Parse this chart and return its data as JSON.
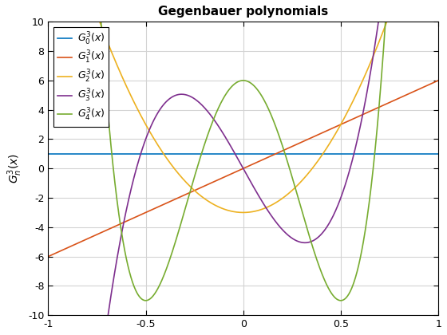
{
  "title": "Gegenbauer polynomials",
  "ylabel": "$G_n^{3}(x)$",
  "xlim": [
    -1,
    1
  ],
  "ylim": [
    -10,
    10
  ],
  "alpha_param": 3,
  "n_values": [
    0,
    1,
    2,
    3,
    4
  ],
  "colors": [
    "#0072BD",
    "#D95319",
    "#EDB120",
    "#7E2F8E",
    "#77AC30"
  ],
  "legend_labels": [
    "$G_0^3(x)$",
    "$G_1^3(x)$",
    "$G_2^3(x)$",
    "$G_3^3(x)$",
    "$G_4^3(x)$"
  ],
  "grid": true,
  "linewidth": 1.2,
  "n_points": 1000,
  "title_fontsize": 11,
  "label_fontsize": 10,
  "tick_fontsize": 9,
  "legend_fontsize": 9,
  "xticks": [
    -1,
    -0.5,
    0,
    0.5,
    1
  ],
  "yticks": [
    -10,
    -8,
    -6,
    -4,
    -2,
    0,
    2,
    4,
    6,
    8,
    10
  ],
  "grid_color": "#D3D3D3",
  "bg_color": "#FFFFFF",
  "axes_edge_color": "#000000"
}
